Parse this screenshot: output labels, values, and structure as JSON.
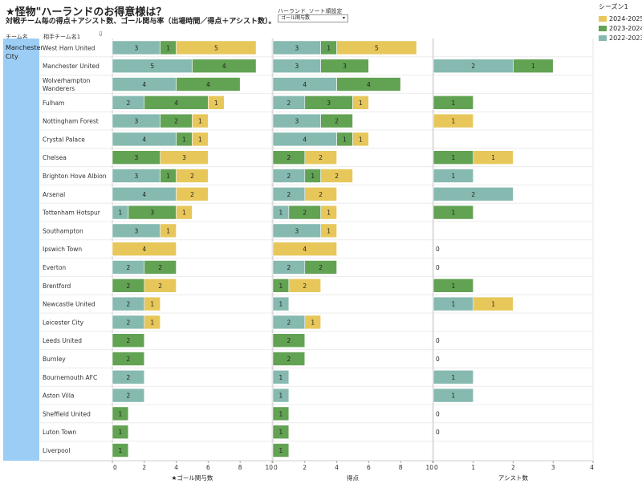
{
  "title": "★怪物\"ハーランドのお得意様は？",
  "subtitle": "対戦チーム毎の得点＋アシスト数、ゴール関与率（出場時間／得点＋アシスト数）。",
  "control": {
    "label": "ハーランド_ソート順設定",
    "value": "ゴール関与数"
  },
  "legend": {
    "title": "シーズン1",
    "items": [
      {
        "label": "2024-2025",
        "color": "#e8c75a"
      },
      {
        "label": "2023-2024",
        "color": "#62a253"
      },
      {
        "label": "2022-2023",
        "color": "#86b9b0"
      }
    ]
  },
  "headers": {
    "team": "チーム名",
    "opponent": "相手チーム名1"
  },
  "team": "Manchester City",
  "chart_data": {
    "type": "bar",
    "orientation": "horizontal-stacked",
    "seasons": [
      "2022-2023",
      "2023-2024",
      "2024-2025"
    ],
    "categories": [
      "West Ham United",
      "Manchester United",
      "Wolverhampton Wanderers",
      "Fulham",
      "Nottingham Forest",
      "Crystal Palace",
      "Chelsea",
      "Brighton Hove Albion",
      "Arsenal",
      "Tottenham Hotspur",
      "Southampton",
      "Ipswich Town",
      "Everton",
      "Brentford",
      "Newcastle United",
      "Leicester City",
      "Leeds United",
      "Burnley",
      "Bournemouth AFC",
      "Aston Villa",
      "Sheffield United",
      "Luton Town",
      "Liverpool"
    ],
    "panels": [
      {
        "xlabel": "★ゴール関与数",
        "xlim": [
          0,
          10
        ],
        "ticks": [
          "0",
          "2",
          "4",
          "6",
          "8",
          "10"
        ],
        "rows": [
          [
            3,
            1,
            5
          ],
          [
            5,
            4,
            0
          ],
          [
            4,
            4,
            0
          ],
          [
            2,
            4,
            1
          ],
          [
            3,
            2,
            1
          ],
          [
            4,
            1,
            1
          ],
          [
            0,
            3,
            3
          ],
          [
            3,
            1,
            2
          ],
          [
            4,
            0,
            2
          ],
          [
            1,
            3,
            1
          ],
          [
            3,
            0,
            1
          ],
          [
            0,
            0,
            4
          ],
          [
            2,
            2,
            0
          ],
          [
            0,
            2,
            2
          ],
          [
            2,
            0,
            1
          ],
          [
            2,
            0,
            1
          ],
          [
            0,
            2,
            0
          ],
          [
            0,
            2,
            0
          ],
          [
            2,
            0,
            0
          ],
          [
            2,
            0,
            0
          ],
          [
            0,
            1,
            0
          ],
          [
            0,
            1,
            0
          ],
          [
            0,
            1,
            0
          ]
        ]
      },
      {
        "xlabel": "得点",
        "xlim": [
          0,
          10
        ],
        "ticks": [
          "0",
          "2",
          "4",
          "6",
          "8",
          "10"
        ],
        "rows": [
          [
            3,
            1,
            5
          ],
          [
            3,
            3,
            0
          ],
          [
            4,
            4,
            0
          ],
          [
            2,
            3,
            1
          ],
          [
            3,
            2,
            0
          ],
          [
            4,
            1,
            1
          ],
          [
            0,
            2,
            2
          ],
          [
            2,
            1,
            2
          ],
          [
            2,
            0,
            2
          ],
          [
            1,
            2,
            1
          ],
          [
            3,
            0,
            1
          ],
          [
            0,
            0,
            4
          ],
          [
            2,
            2,
            0
          ],
          [
            0,
            1,
            2
          ],
          [
            1,
            0,
            0
          ],
          [
            2,
            0,
            1
          ],
          [
            0,
            2,
            0
          ],
          [
            0,
            2,
            0
          ],
          [
            1,
            0,
            0
          ],
          [
            1,
            0,
            0
          ],
          [
            0,
            1,
            0
          ],
          [
            0,
            1,
            0
          ],
          [
            0,
            1,
            0
          ]
        ]
      },
      {
        "xlabel": "アシスト数",
        "xlim": [
          0,
          4
        ],
        "ticks": [
          "0",
          "1",
          "2",
          "3",
          "4"
        ],
        "rows": [
          [
            0,
            0,
            0
          ],
          [
            2,
            1,
            0
          ],
          [
            0,
            0,
            0
          ],
          [
            0,
            1,
            0
          ],
          [
            0,
            0,
            1
          ],
          [
            0,
            0,
            0
          ],
          [
            0,
            1,
            1
          ],
          [
            1,
            0,
            0
          ],
          [
            2,
            0,
            0
          ],
          [
            0,
            1,
            0
          ],
          [
            0,
            0,
            0
          ],
          [
            0,
            0,
            0
          ],
          [
            0,
            0,
            0
          ],
          [
            0,
            1,
            0
          ],
          [
            1,
            0,
            1
          ],
          [
            0,
            0,
            0
          ],
          [
            0,
            0,
            0
          ],
          [
            0,
            0,
            0
          ],
          [
            1,
            0,
            0
          ],
          [
            1,
            0,
            0
          ],
          [
            0,
            0,
            0
          ],
          [
            0,
            0,
            0
          ],
          [
            0,
            0,
            0
          ]
        ],
        "zero_label_rows": [
          11,
          12,
          16,
          17,
          20,
          21
        ],
        "zero_label": "0"
      }
    ]
  }
}
